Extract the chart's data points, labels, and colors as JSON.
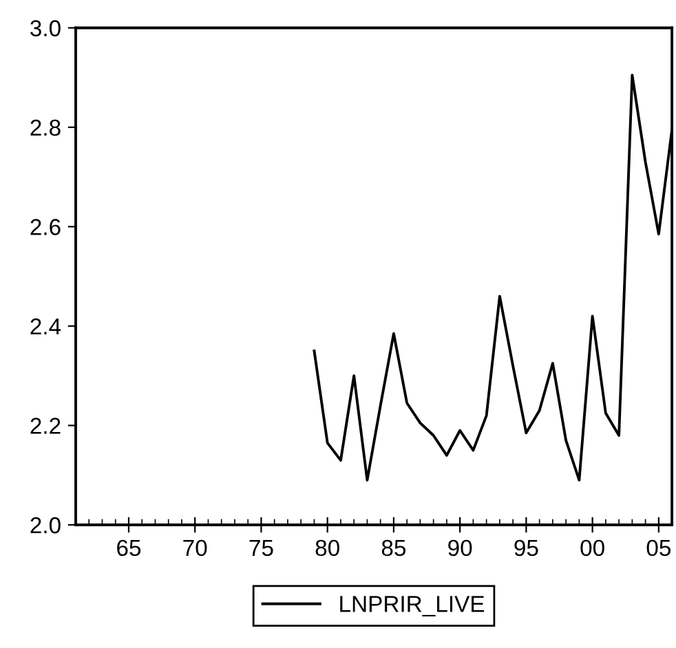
{
  "chart_data": {
    "type": "line",
    "x": [
      1979,
      1980,
      1981,
      1982,
      1983,
      1984,
      1985,
      1986,
      1987,
      1988,
      1989,
      1990,
      1991,
      1992,
      1993,
      1994,
      1995,
      1996,
      1997,
      1998,
      1999,
      2000,
      2001,
      2002,
      2003,
      2004,
      2005,
      2006
    ],
    "series": [
      {
        "name": "LNPRIR_LIVE",
        "color": "#000000",
        "values": [
          2.35,
          2.165,
          2.13,
          2.3,
          2.09,
          2.24,
          2.385,
          2.245,
          2.205,
          2.18,
          2.14,
          2.19,
          2.15,
          2.22,
          2.46,
          2.32,
          2.185,
          2.23,
          2.325,
          2.17,
          2.09,
          2.42,
          2.225,
          2.18,
          2.905,
          2.73,
          2.585,
          2.795
        ]
      }
    ],
    "xlim": [
      1961,
      2006
    ],
    "ylim": [
      2.0,
      3.0
    ],
    "xticks": [
      {
        "value": 1965,
        "label": "65"
      },
      {
        "value": 1970,
        "label": "70"
      },
      {
        "value": 1975,
        "label": "75"
      },
      {
        "value": 1980,
        "label": "80"
      },
      {
        "value": 1985,
        "label": "85"
      },
      {
        "value": 1990,
        "label": "90"
      },
      {
        "value": 1995,
        "label": "95"
      },
      {
        "value": 2000,
        "label": "00"
      },
      {
        "value": 2005,
        "label": "05"
      }
    ],
    "yticks": [
      {
        "value": 2.0,
        "label": "2.0"
      },
      {
        "value": 2.2,
        "label": "2.2"
      },
      {
        "value": 2.4,
        "label": "2.4"
      },
      {
        "value": 2.6,
        "label": "2.6"
      },
      {
        "value": 2.8,
        "label": "2.8"
      },
      {
        "value": 3.0,
        "label": "3.0"
      }
    ],
    "grid": false,
    "legend": "bottom",
    "marker": "none",
    "line_style": "solid"
  }
}
